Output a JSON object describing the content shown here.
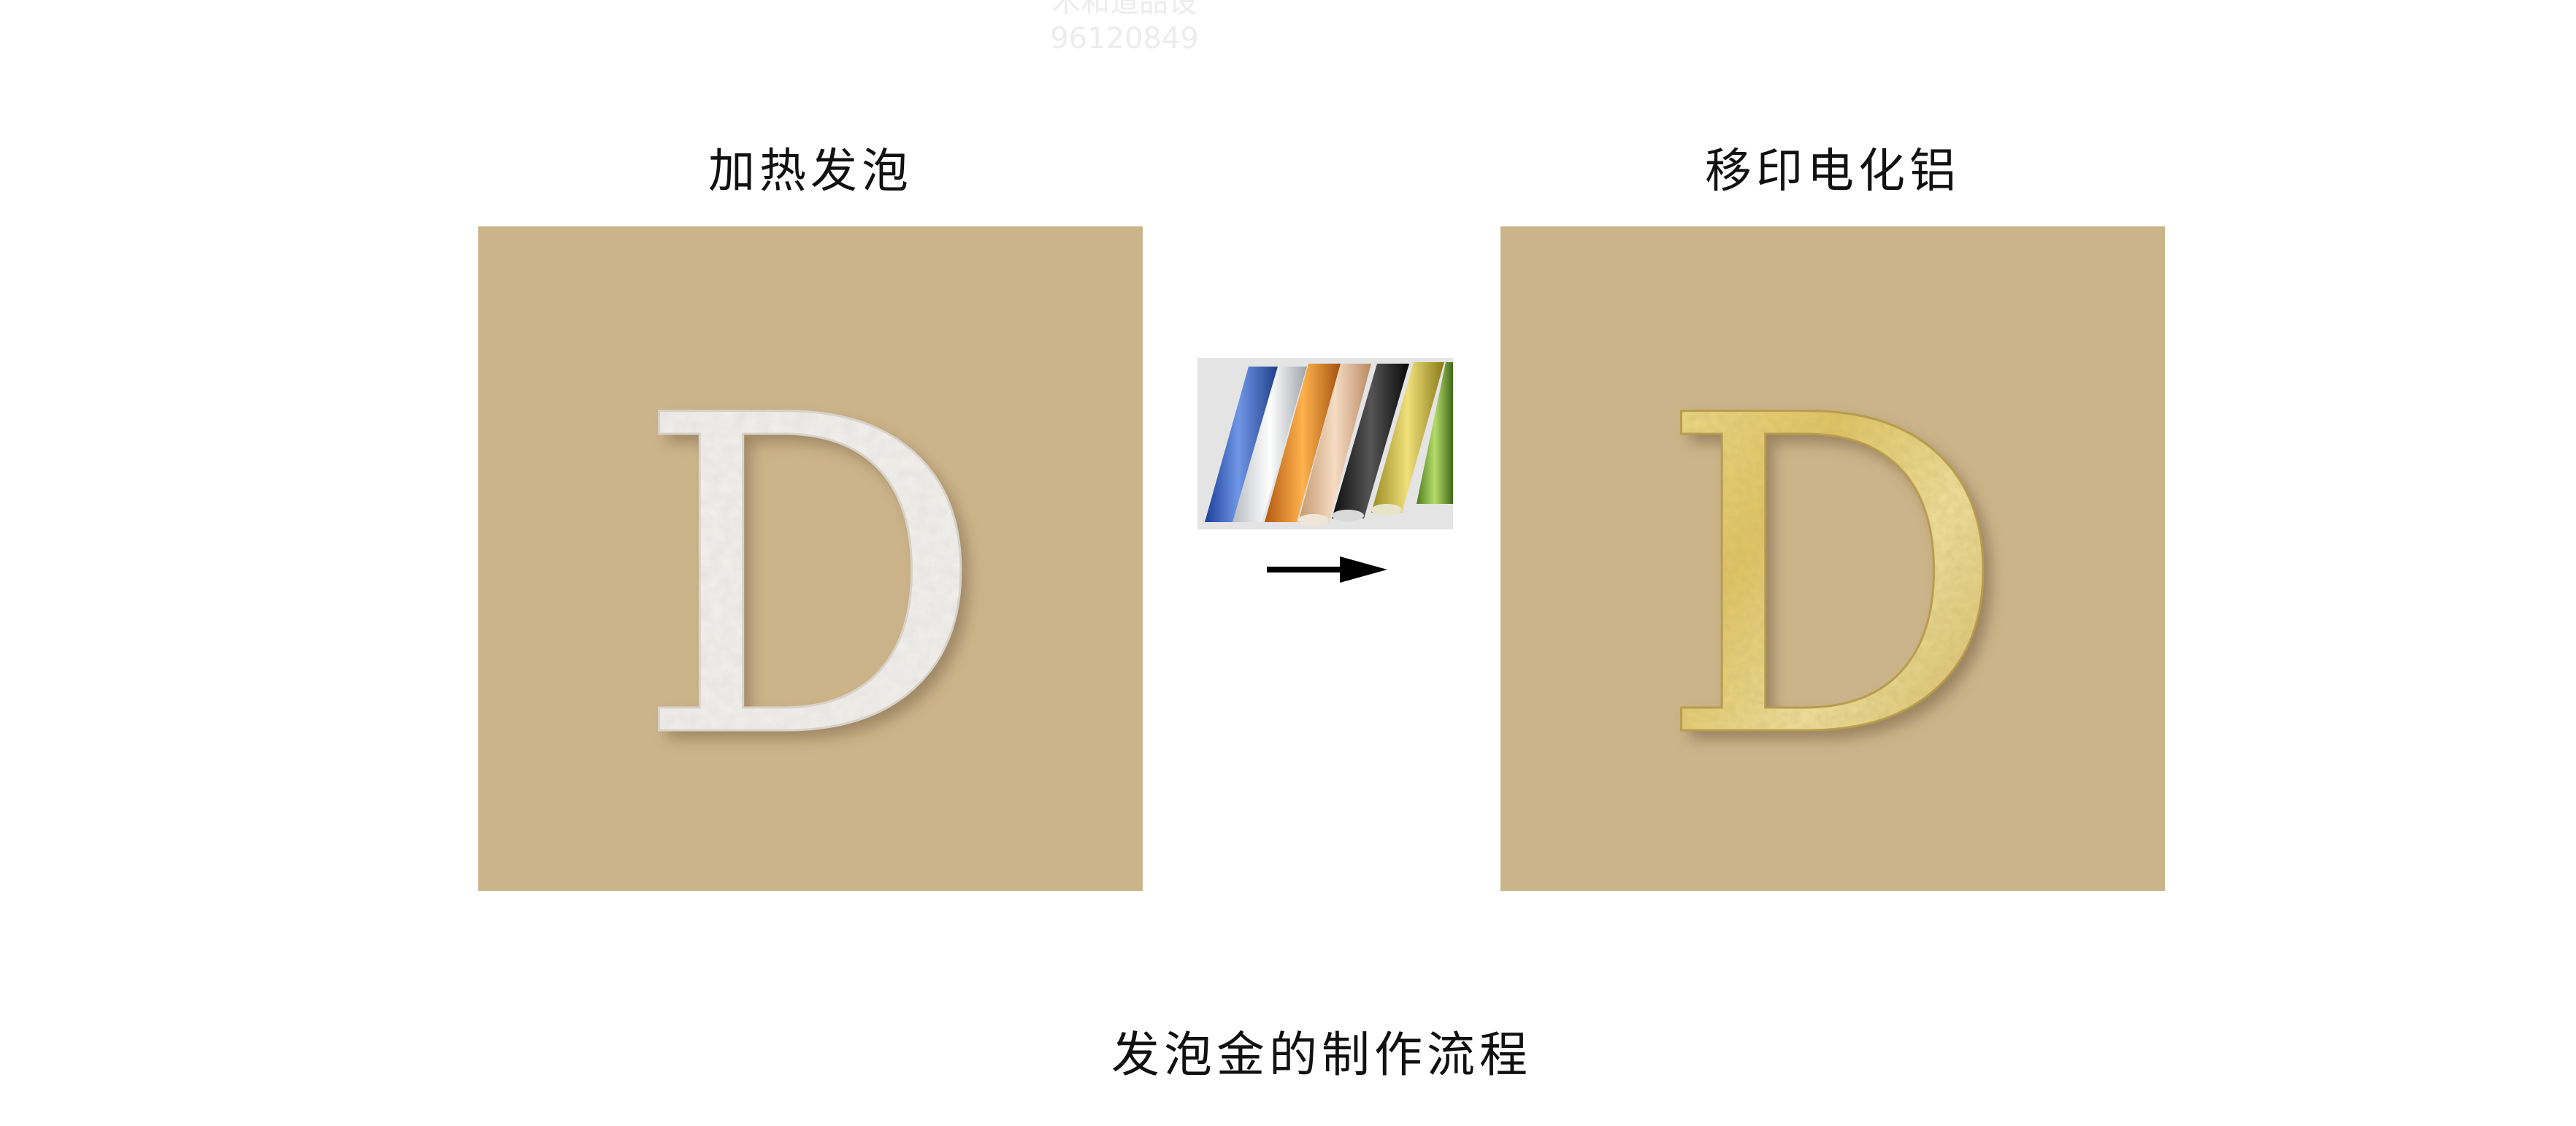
{
  "watermark": {
    "line1": "木和道品设",
    "line2": "96120849"
  },
  "steps": [
    {
      "label": "加热发泡",
      "letter": "D",
      "finish": "white-foam"
    },
    {
      "label": "移印电化铝",
      "letter": "D",
      "finish": "gold-foil"
    }
  ],
  "foil_rolls": [
    "blue",
    "silver",
    "orange",
    "champagne",
    "black",
    "gold",
    "green"
  ],
  "caption": "发泡金的制作流程",
  "colors": {
    "panel": "#ccb48a",
    "foam": "#f4f2ee",
    "gold": "#e6d07a"
  }
}
